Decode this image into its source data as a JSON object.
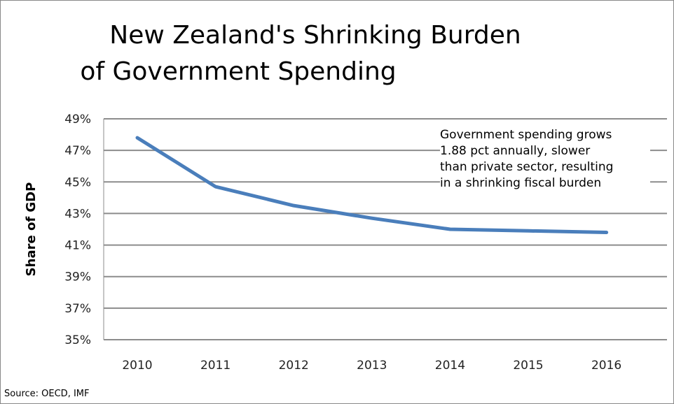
{
  "chart_data": {
    "type": "line",
    "title": [
      "New Zealand's Shrinking Burden",
      "of Government Spending"
    ],
    "ylabel": "Share of GDP",
    "xlabel": "",
    "categories": [
      "2010",
      "2011",
      "2012",
      "2013",
      "2014",
      "2015",
      "2016"
    ],
    "values": [
      47.8,
      44.7,
      43.5,
      42.7,
      42.0,
      41.9,
      41.8
    ],
    "ylim": [
      35,
      49
    ],
    "yticks": [
      35,
      37,
      39,
      41,
      43,
      45,
      47,
      49
    ],
    "ytick_labels": [
      "35%",
      "37%",
      "39%",
      "41%",
      "43%",
      "45%",
      "47%",
      "49%"
    ],
    "grid": true,
    "line_color": "#4a7ebb",
    "annotation": [
      "Government spending grows",
      "1.88 pct annually, slower",
      "than private sector, resulting",
      "in a shrinking fiscal burden"
    ],
    "source": "Source: OECD, IMF"
  }
}
